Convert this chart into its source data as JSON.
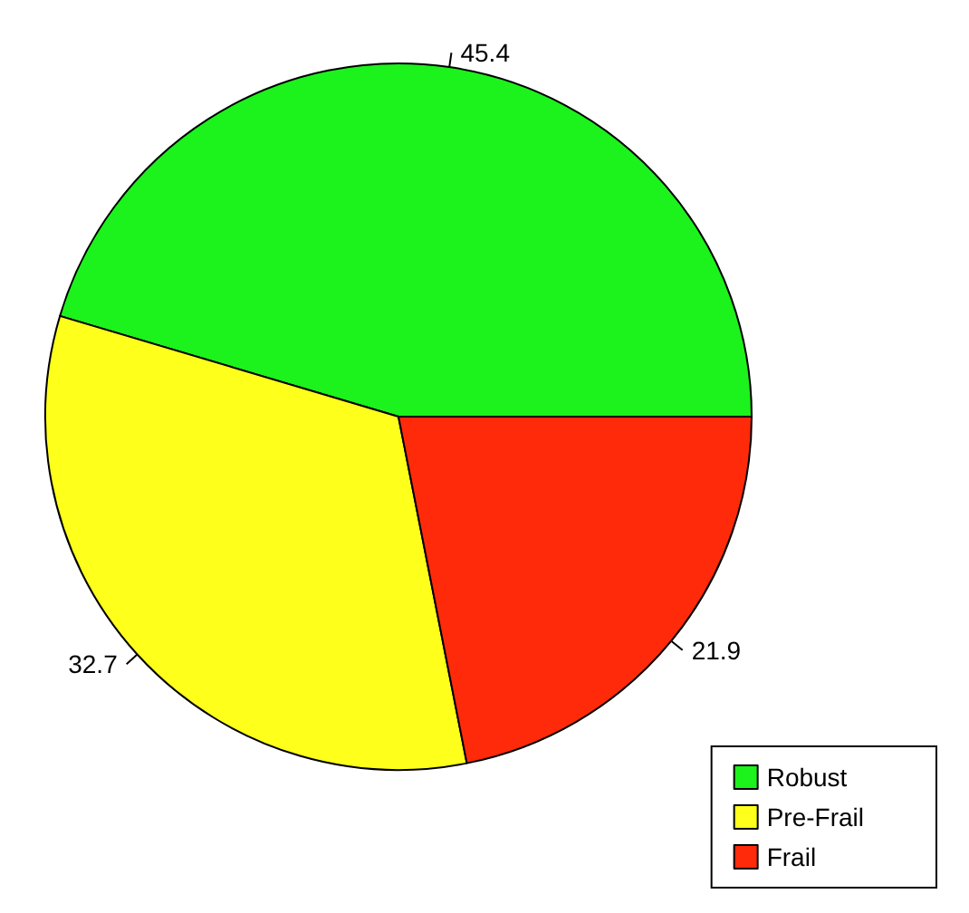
{
  "chart_data": {
    "type": "pie",
    "categories": [
      "Robust",
      "Pre-Frail",
      "Frail"
    ],
    "values": [
      45.4,
      32.7,
      21.9
    ],
    "colors": [
      "#1cf21c",
      "#ffff1c",
      "#ff2a0a"
    ],
    "data_labels": true,
    "legend": "bottom right"
  }
}
